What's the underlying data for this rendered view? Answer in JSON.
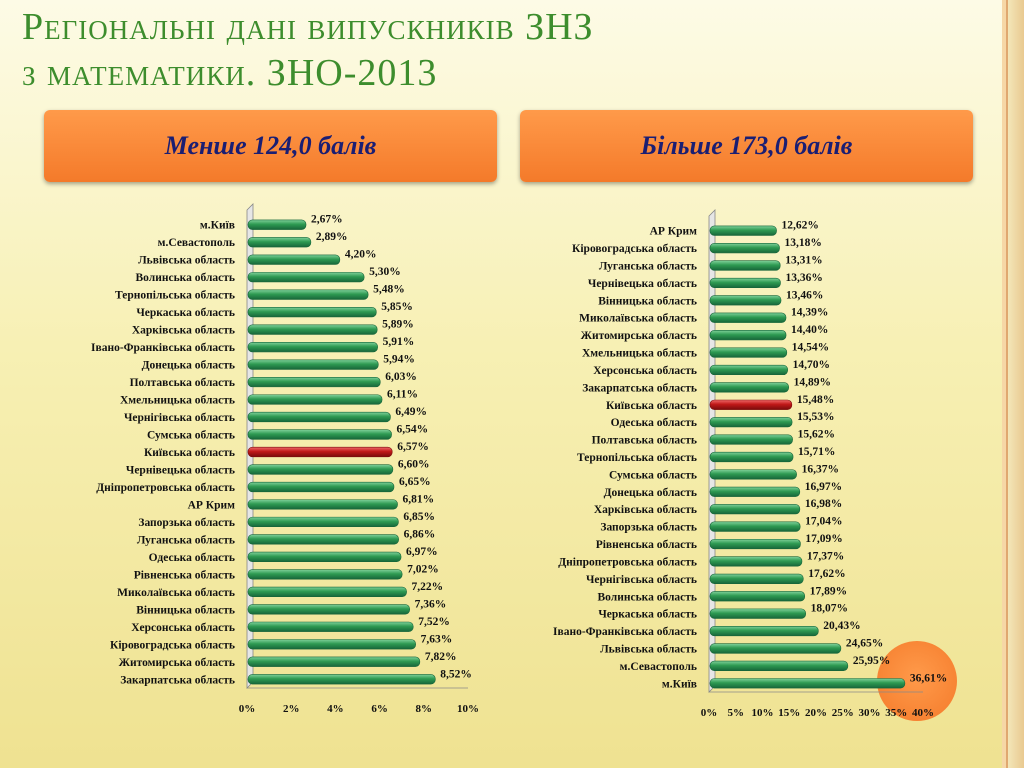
{
  "title_line1": "Регіональні дані випускників ЗНЗ",
  "title_line2": "з математики. ЗНО-2013",
  "banner_left": "Менше 124,0 балів",
  "banner_right": "Більше 173,0 балів",
  "colors": {
    "bar": "#2e9a52",
    "bar_dark": "#17663a",
    "highlight": "#c01818",
    "highlight_dark": "#7a0c0c",
    "title": "#3d8d2d",
    "banner": "#f47a2a"
  },
  "chart_data": [
    {
      "type": "bar",
      "orientation": "horizontal",
      "categories": [
        "м.Київ",
        "м.Севастополь",
        "Львівська область",
        "Волинська область",
        "Тернопільська область",
        "Черкаська область",
        "Харківська область",
        "Івано-Франківська область",
        "Донецька область",
        "Полтавська область",
        "Хмельницька область",
        "Чернігівська область",
        "Сумська область",
        "Київська область",
        "Чернівецька область",
        "Дніпропетровська область",
        "АР Крим",
        "Запорзька область",
        "Луганська область",
        "Одеська область",
        "Рівненська область",
        "Миколаївська область",
        "Вінницька область",
        "Херсонська область",
        "Кіровоградська область",
        "Житомирська область",
        "Закарпатська область"
      ],
      "values": [
        2.67,
        2.89,
        4.2,
        5.3,
        5.48,
        5.85,
        5.89,
        5.91,
        5.94,
        6.03,
        6.11,
        6.49,
        6.54,
        6.57,
        6.6,
        6.65,
        6.81,
        6.85,
        6.86,
        6.97,
        7.02,
        7.22,
        7.36,
        7.52,
        7.63,
        7.82,
        8.52
      ],
      "value_labels": [
        "2,67%",
        "2,89%",
        "4,20%",
        "5,30%",
        "5,48%",
        "5,85%",
        "5,89%",
        "5,91%",
        "5,94%",
        "6,03%",
        "6,11%",
        "6,49%",
        "6,54%",
        "6,57%",
        "6,60%",
        "6,65%",
        "6,81%",
        "6,85%",
        "6,86%",
        "6,97%",
        "7,02%",
        "7,22%",
        "7,36%",
        "7,52%",
        "7,63%",
        "7,82%",
        "8,52%"
      ],
      "highlight_index": 13,
      "xlim": [
        0,
        10
      ],
      "x_ticks": [
        "0%",
        "2%",
        "4%",
        "6%",
        "8%",
        "10%"
      ],
      "grid": false
    },
    {
      "type": "bar",
      "orientation": "horizontal",
      "categories": [
        "АР Крим",
        "Кіровоградська область",
        "Луганська область",
        "Чернівецька область",
        "Вінницька область",
        "Миколаївська область",
        "Житомирська область",
        "Хмельницька область",
        "Херсонська область",
        "Закарпатська область",
        "Київська область",
        "Одеська область",
        "Полтавська область",
        "Тернопільська область",
        "Сумська область",
        "Донецька область",
        "Харківська область",
        "Запорзька область",
        "Рівненська область",
        "Дніпропетровська область",
        "Чернігівська область",
        "Волинська область",
        "Черкаська область",
        "Івано-Франківська область",
        "Львівська область",
        "м.Севастополь",
        "м.Київ"
      ],
      "values": [
        12.62,
        13.18,
        13.31,
        13.36,
        13.46,
        14.39,
        14.4,
        14.54,
        14.7,
        14.89,
        15.48,
        15.53,
        15.62,
        15.71,
        16.37,
        16.97,
        16.98,
        17.04,
        17.09,
        17.37,
        17.62,
        17.89,
        18.07,
        20.43,
        24.65,
        25.95,
        36.61
      ],
      "value_labels": [
        "12,62%",
        "13,18%",
        "13,31%",
        "13,36%",
        "13,46%",
        "14,39%",
        "14,40%",
        "14,54%",
        "14,70%",
        "14,89%",
        "15,48%",
        "15,53%",
        "15,62%",
        "15,71%",
        "16,37%",
        "16,97%",
        "16,98%",
        "17,04%",
        "17,09%",
        "17,37%",
        "17,62%",
        "17,89%",
        "18,07%",
        "20,43%",
        "24,65%",
        "25,95%",
        "36,61%"
      ],
      "highlight_index": 10,
      "xlim": [
        0,
        40
      ],
      "x_ticks": [
        "0%",
        "5%",
        "10%",
        "15%",
        "20%",
        "25%",
        "30%",
        "35%",
        "40%"
      ],
      "grid": false
    }
  ]
}
